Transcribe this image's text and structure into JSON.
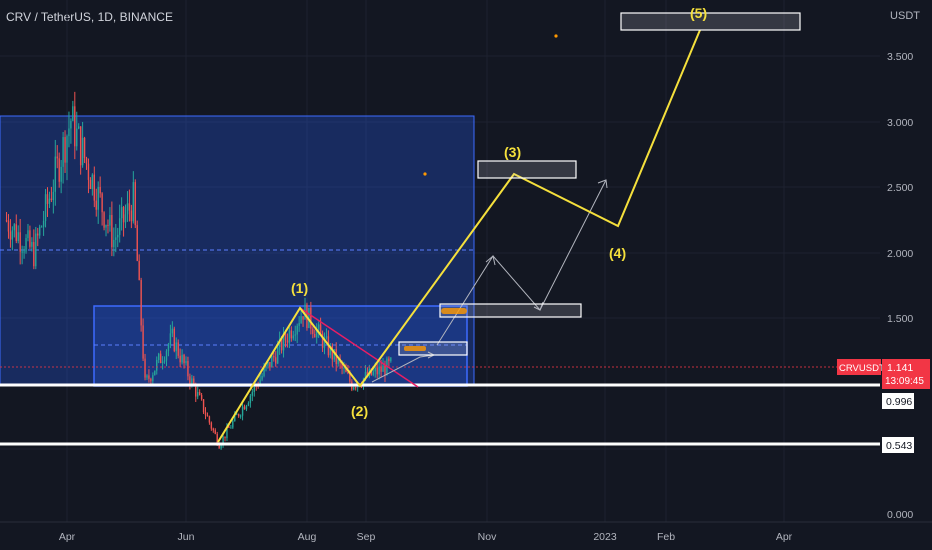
{
  "header": {
    "symbol_line": "CRV / TetherUS, 1D, BINANCE",
    "currency": "USDT"
  },
  "price_axis": {
    "ticks": [
      "3.500",
      "3.000",
      "2.500",
      "2.000",
      "1.500",
      "0.000"
    ],
    "tick_values": [
      3.5,
      3.0,
      2.5,
      2.0,
      1.5,
      0.0
    ]
  },
  "time_axis": {
    "ticks": [
      "Apr",
      "Jun",
      "Aug",
      "Sep",
      "Nov",
      "2023",
      "Feb",
      "Apr"
    ]
  },
  "current": {
    "ticker": "CRVUSDT",
    "price": "1.141",
    "countdown": "13:09:45",
    "color": "#f23645"
  },
  "levels": [
    {
      "label": "0.996",
      "value": 0.996
    },
    {
      "label": "0.543",
      "value": 0.543
    }
  ],
  "waves": [
    "(1)",
    "(2)",
    "(3)",
    "(4)",
    "(5)"
  ],
  "colors": {
    "background": "#131722",
    "up": "#26a69a",
    "down": "#ef5350",
    "wave": "#f5e03c",
    "zone": "#2962ff",
    "projection": "#b2b5be",
    "counter": "#e91e63"
  },
  "chart_data": {
    "type": "candlestick",
    "title": "CRV / TetherUS, 1D, BINANCE",
    "ylabel": "USDT",
    "ylim": [
      0,
      3.8
    ],
    "last_price": 1.141,
    "support_levels": [
      0.996,
      0.543
    ],
    "price_path": [
      {
        "date": "2022-03-01",
        "value": 2.25
      },
      {
        "date": "2022-03-15",
        "value": 2.0
      },
      {
        "date": "2022-04-03",
        "value": 3.02
      },
      {
        "date": "2022-04-25",
        "value": 2.1
      },
      {
        "date": "2022-05-05",
        "value": 2.4
      },
      {
        "date": "2022-05-11",
        "value": 1.0
      },
      {
        "date": "2022-05-25",
        "value": 1.35
      },
      {
        "date": "2022-06-18",
        "value": 0.54
      },
      {
        "date": "2022-07-31",
        "value": 1.56
      },
      {
        "date": "2022-08-25",
        "value": 1.0
      },
      {
        "date": "2022-09-15",
        "value": 1.15
      }
    ],
    "elliott_waves": [
      {
        "label": "(1)",
        "date": "2022-07-31",
        "value": 1.56
      },
      {
        "label": "(2)",
        "date": "2022-08-25",
        "value": 1.0
      },
      {
        "label": "(3)",
        "date": "2022-11-08",
        "value": 2.6
      },
      {
        "label": "(4)",
        "date": "2022-12-29",
        "value": 2.18
      },
      {
        "label": "(5)",
        "date": "2023-02-22",
        "value": 3.7
      }
    ]
  }
}
